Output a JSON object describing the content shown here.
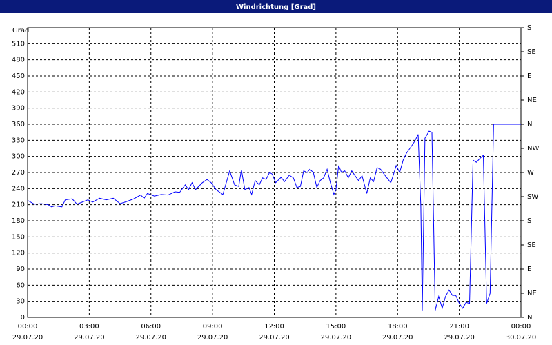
{
  "chart_data": {
    "type": "line",
    "title": "Windrichtung [Grad]",
    "ylabel": "Grad",
    "xlim": [
      0,
      24
    ],
    "ylim": [
      0,
      540
    ],
    "y2lim": [
      0,
      540
    ],
    "xticks": [
      {
        "value": 0,
        "label": "00:00"
      },
      {
        "value": 3,
        "label": "03:00"
      },
      {
        "value": 6,
        "label": "06:00"
      },
      {
        "value": 9,
        "label": "09:00"
      },
      {
        "value": 12,
        "label": "12:00"
      },
      {
        "value": 15,
        "label": "15:00"
      },
      {
        "value": 18,
        "label": "18:00"
      },
      {
        "value": 21,
        "label": "21:00"
      },
      {
        "value": 24,
        "label": "00:00"
      }
    ],
    "xtick_dates": [
      "29.07.20",
      "29.07.20",
      "29.07.20",
      "29.07.20",
      "29.07.20",
      "29.07.20",
      "29.07.20",
      "29.07.20",
      "30.07.20"
    ],
    "yticks": [
      0,
      30,
      60,
      90,
      120,
      150,
      180,
      210,
      240,
      270,
      300,
      330,
      360,
      390,
      420,
      450,
      480,
      510
    ],
    "y2ticks": [
      {
        "value": 0,
        "label": "N"
      },
      {
        "value": 45,
        "label": "NE"
      },
      {
        "value": 90,
        "label": "E"
      },
      {
        "value": 135,
        "label": "SE"
      },
      {
        "value": 180,
        "label": "S"
      },
      {
        "value": 225,
        "label": "SW"
      },
      {
        "value": 270,
        "label": "W"
      },
      {
        "value": 315,
        "label": "NW"
      },
      {
        "value": 360,
        "label": "N"
      },
      {
        "value": 405,
        "label": "NE"
      },
      {
        "value": 450,
        "label": "E"
      },
      {
        "value": 495,
        "label": "SE"
      },
      {
        "value": 540,
        "label": "S"
      }
    ],
    "grid": true,
    "x": [
      0,
      0.33,
      0.67,
      1.0,
      1.17,
      1.33,
      1.67,
      1.83,
      2.17,
      2.4,
      2.67,
      2.93,
      3.17,
      3.5,
      3.83,
      4.17,
      4.5,
      4.83,
      5.17,
      5.5,
      5.67,
      5.83,
      6.17,
      6.5,
      6.83,
      7.17,
      7.4,
      7.67,
      7.83,
      8.0,
      8.17,
      8.5,
      8.73,
      8.93,
      9.17,
      9.5,
      9.83,
      10.07,
      10.27,
      10.4,
      10.57,
      10.77,
      10.9,
      11.07,
      11.27,
      11.43,
      11.6,
      11.77,
      11.9,
      12.07,
      12.33,
      12.5,
      12.73,
      12.93,
      13.1,
      13.27,
      13.43,
      13.6,
      13.73,
      13.9,
      14.07,
      14.23,
      14.4,
      14.57,
      14.73,
      14.9,
      15.0,
      15.13,
      15.27,
      15.43,
      15.6,
      15.77,
      15.93,
      16.1,
      16.27,
      16.5,
      16.67,
      16.83,
      17.0,
      17.17,
      17.4,
      17.67,
      17.83,
      17.93,
      18.1,
      18.27,
      18.43,
      18.6,
      18.83,
      19.0,
      19.13,
      19.2,
      19.33,
      19.53,
      19.67,
      19.83,
      20.0,
      20.17,
      20.33,
      20.5,
      20.67,
      20.83,
      21.0,
      21.17,
      21.33,
      21.5,
      21.67,
      21.83,
      22.0,
      22.17,
      22.33,
      22.5,
      22.67,
      24.0
    ],
    "series": [
      {
        "name": "Windrichtung",
        "color": "#0000ff",
        "values": [
          218,
          211,
          212,
          210,
          206,
          208,
          206,
          219,
          221,
          211,
          215,
          219,
          215,
          222,
          219,
          222,
          212,
          216,
          221,
          228,
          222,
          231,
          226,
          229,
          228,
          234,
          233,
          247,
          238,
          251,
          238,
          251,
          257,
          251,
          238,
          229,
          273,
          247,
          244,
          275,
          238,
          242,
          229,
          255,
          247,
          260,
          257,
          270,
          267,
          251,
          261,
          253,
          265,
          260,
          242,
          244,
          273,
          270,
          276,
          270,
          242,
          255,
          260,
          276,
          251,
          229,
          238,
          283,
          270,
          273,
          260,
          273,
          264,
          255,
          264,
          231,
          260,
          253,
          279,
          276,
          264,
          251,
          270,
          283,
          270,
          293,
          306,
          315,
          328,
          341,
          206,
          13,
          334,
          347,
          345,
          13,
          39,
          17,
          39,
          51,
          41,
          41,
          26,
          17,
          28,
          26,
          293,
          289,
          296,
          302,
          26,
          45,
          360,
          360
        ]
      }
    ]
  }
}
